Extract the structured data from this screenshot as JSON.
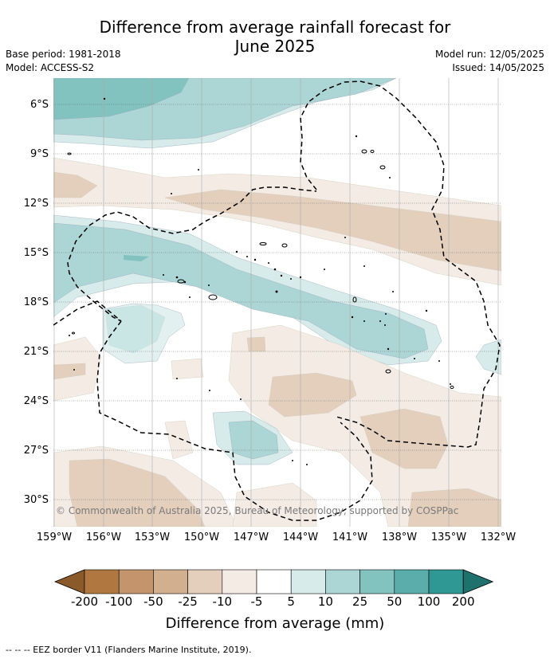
{
  "header": {
    "title_line1": "Difference from average rainfall forecast for",
    "title_line2": "June 2025",
    "base_period": "Base period: 1981-2018",
    "model": "Model: ACCESS-S2",
    "model_run": "Model run: 12/05/2025",
    "issued": "Issued: 14/05/2025"
  },
  "map": {
    "lat_labels": [
      "6°S",
      "9°S",
      "12°S",
      "15°S",
      "18°S",
      "21°S",
      "24°S",
      "27°S",
      "30°S"
    ],
    "lon_labels": [
      "159°W",
      "156°W",
      "153°W",
      "150°W",
      "147°W",
      "144°W",
      "141°W",
      "138°W",
      "135°W",
      "132°W"
    ],
    "copyright": "© Commonwealth of Australia 2025, Bureau of Meteorology, supported by COSPPac",
    "gridlines": true
  },
  "colorbar": {
    "title": "Difference from average (mm)",
    "tick_labels": [
      "-200",
      "-100",
      "-50",
      "-25",
      "-10",
      "-5",
      "5",
      "10",
      "25",
      "50",
      "100",
      "200"
    ],
    "colors": [
      "#8b5a2b",
      "#b07840",
      "#c4946c",
      "#d2b08f",
      "#e4cfbd",
      "#f4ebe5",
      "#ffffff",
      "#d6ebea",
      "#acd6d5",
      "#82c2bf",
      "#5aadab",
      "#2f9894",
      "#1f716d"
    ]
  },
  "footnote": "-- -- -- EEZ border V11 (Flanders Marine Institute, 2019)."
}
